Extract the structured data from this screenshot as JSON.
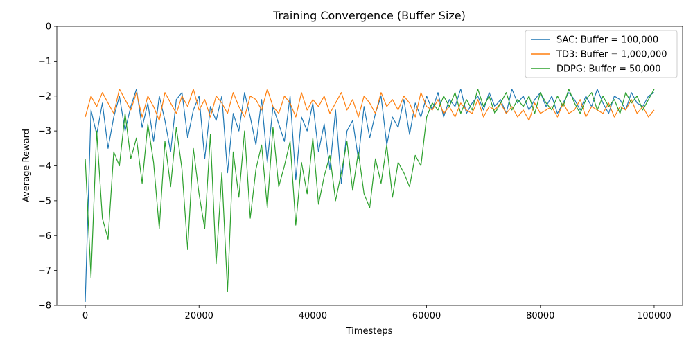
{
  "chart_data": {
    "type": "line",
    "title": "Training Convergence (Buffer Size)",
    "xlabel": "Timesteps",
    "ylabel": "Average Reward",
    "xlim": [
      -5000,
      105000
    ],
    "ylim": [
      -8,
      0
    ],
    "xticks": [
      0,
      20000,
      40000,
      60000,
      80000,
      100000
    ],
    "xtick_labels": [
      "0",
      "20000",
      "40000",
      "60000",
      "80000",
      "100000"
    ],
    "yticks": [
      0,
      -1,
      -2,
      -3,
      -4,
      -5,
      -6,
      -7,
      -8
    ],
    "ytick_labels": [
      "0",
      "−1",
      "−2",
      "−3",
      "−4",
      "−5",
      "−6",
      "−7",
      "−8"
    ],
    "grid": false,
    "legend_position": "top-right",
    "series": [
      {
        "name": "SAC: Buffer = 100,000",
        "color": "#1f77b4",
        "x": [
          0,
          1000,
          2000,
          3000,
          4000,
          5000,
          6000,
          7000,
          8000,
          9000,
          10000,
          11000,
          12000,
          13000,
          14000,
          15000,
          16000,
          17000,
          18000,
          19000,
          20000,
          21000,
          22000,
          23000,
          24000,
          25000,
          26000,
          27000,
          28000,
          29000,
          30000,
          31000,
          32000,
          33000,
          34000,
          35000,
          36000,
          37000,
          38000,
          39000,
          40000,
          41000,
          42000,
          43000,
          44000,
          45000,
          46000,
          47000,
          48000,
          49000,
          50000,
          51000,
          52000,
          53000,
          54000,
          55000,
          56000,
          57000,
          58000,
          59000,
          60000,
          61000,
          62000,
          63000,
          64000,
          65000,
          66000,
          67000,
          68000,
          69000,
          70000,
          71000,
          72000,
          73000,
          74000,
          75000,
          76000,
          77000,
          78000,
          79000,
          80000,
          81000,
          82000,
          83000,
          84000,
          85000,
          86000,
          87000,
          88000,
          89000,
          90000,
          91000,
          92000,
          93000,
          94000,
          95000,
          96000,
          97000,
          98000,
          99000,
          100000
        ],
        "values": [
          -7.9,
          -2.4,
          -3.1,
          -2.2,
          -3.5,
          -2.6,
          -2.0,
          -3.0,
          -2.3,
          -1.8,
          -2.9,
          -2.2,
          -3.3,
          -2.0,
          -2.7,
          -3.6,
          -2.1,
          -1.9,
          -3.2,
          -2.4,
          -2.0,
          -3.8,
          -2.3,
          -2.7,
          -2.0,
          -4.2,
          -2.5,
          -3.0,
          -1.9,
          -2.6,
          -3.4,
          -2.1,
          -3.9,
          -2.3,
          -2.8,
          -3.3,
          -2.0,
          -4.4,
          -2.6,
          -3.0,
          -2.2,
          -3.6,
          -2.8,
          -4.1,
          -2.4,
          -4.5,
          -3.0,
          -2.7,
          -3.8,
          -2.3,
          -3.2,
          -2.5,
          -2.0,
          -3.4,
          -2.6,
          -2.9,
          -2.1,
          -3.1,
          -2.2,
          -2.6,
          -2.0,
          -2.4,
          -1.9,
          -2.6,
          -2.1,
          -2.3,
          -1.8,
          -2.5,
          -2.2,
          -2.0,
          -2.4,
          -1.9,
          -2.3,
          -2.1,
          -2.5,
          -1.8,
          -2.2,
          -2.0,
          -2.4,
          -2.1,
          -1.9,
          -2.3,
          -2.0,
          -2.5,
          -2.2,
          -1.9,
          -2.1,
          -2.4,
          -2.0,
          -2.3,
          -1.8,
          -2.2,
          -2.5,
          -2.0,
          -2.1,
          -2.4,
          -1.9,
          -2.2,
          -2.3,
          -2.0,
          -1.9
        ]
      },
      {
        "name": "TD3: Buffer = 1,000,000",
        "color": "#ff7f0e",
        "x": [
          0,
          1000,
          2000,
          3000,
          4000,
          5000,
          6000,
          7000,
          8000,
          9000,
          10000,
          11000,
          12000,
          13000,
          14000,
          15000,
          16000,
          17000,
          18000,
          19000,
          20000,
          21000,
          22000,
          23000,
          24000,
          25000,
          26000,
          27000,
          28000,
          29000,
          30000,
          31000,
          32000,
          33000,
          34000,
          35000,
          36000,
          37000,
          38000,
          39000,
          40000,
          41000,
          42000,
          43000,
          44000,
          45000,
          46000,
          47000,
          48000,
          49000,
          50000,
          51000,
          52000,
          53000,
          54000,
          55000,
          56000,
          57000,
          58000,
          59000,
          60000,
          61000,
          62000,
          63000,
          64000,
          65000,
          66000,
          67000,
          68000,
          69000,
          70000,
          71000,
          72000,
          73000,
          74000,
          75000,
          76000,
          77000,
          78000,
          79000,
          80000,
          81000,
          82000,
          83000,
          84000,
          85000,
          86000,
          87000,
          88000,
          89000,
          90000,
          91000,
          92000,
          93000,
          94000,
          95000,
          96000,
          97000,
          98000,
          99000,
          100000
        ],
        "values": [
          -2.6,
          -2.0,
          -2.3,
          -1.9,
          -2.2,
          -2.5,
          -1.8,
          -2.1,
          -2.4,
          -1.9,
          -2.6,
          -2.0,
          -2.3,
          -2.7,
          -1.9,
          -2.2,
          -2.5,
          -2.0,
          -2.3,
          -1.8,
          -2.4,
          -2.1,
          -2.6,
          -2.0,
          -2.2,
          -2.5,
          -1.9,
          -2.3,
          -2.6,
          -2.0,
          -2.1,
          -2.4,
          -1.8,
          -2.3,
          -2.5,
          -2.0,
          -2.2,
          -2.6,
          -1.9,
          -2.4,
          -2.1,
          -2.3,
          -2.0,
          -2.5,
          -2.2,
          -1.9,
          -2.4,
          -2.1,
          -2.6,
          -2.0,
          -2.2,
          -2.5,
          -1.9,
          -2.3,
          -2.1,
          -2.4,
          -2.0,
          -2.2,
          -2.6,
          -1.9,
          -2.3,
          -2.4,
          -2.1,
          -2.5,
          -2.3,
          -2.6,
          -2.2,
          -2.4,
          -2.5,
          -2.1,
          -2.6,
          -2.3,
          -2.4,
          -2.2,
          -2.5,
          -2.3,
          -2.6,
          -2.4,
          -2.7,
          -2.2,
          -2.5,
          -2.4,
          -2.3,
          -2.6,
          -2.2,
          -2.5,
          -2.4,
          -2.1,
          -2.6,
          -2.3,
          -2.4,
          -2.5,
          -2.2,
          -2.6,
          -2.3,
          -2.4,
          -2.1,
          -2.5,
          -2.3,
          -2.6,
          -2.4
        ]
      },
      {
        "name": "DDPG: Buffer = 50,000",
        "color": "#2ca02c",
        "x": [
          0,
          1000,
          2000,
          3000,
          4000,
          5000,
          6000,
          7000,
          8000,
          9000,
          10000,
          11000,
          12000,
          13000,
          14000,
          15000,
          16000,
          17000,
          18000,
          19000,
          20000,
          21000,
          22000,
          23000,
          24000,
          25000,
          26000,
          27000,
          28000,
          29000,
          30000,
          31000,
          32000,
          33000,
          34000,
          35000,
          36000,
          37000,
          38000,
          39000,
          40000,
          41000,
          42000,
          43000,
          44000,
          45000,
          46000,
          47000,
          48000,
          49000,
          50000,
          51000,
          52000,
          53000,
          54000,
          55000,
          56000,
          57000,
          58000,
          59000,
          60000,
          61000,
          62000,
          63000,
          64000,
          65000,
          66000,
          67000,
          68000,
          69000,
          70000,
          71000,
          72000,
          73000,
          74000,
          75000,
          76000,
          77000,
          78000,
          79000,
          80000,
          81000,
          82000,
          83000,
          84000,
          85000,
          86000,
          87000,
          88000,
          89000,
          90000,
          91000,
          92000,
          93000,
          94000,
          95000,
          96000,
          97000,
          98000,
          99000,
          100000
        ],
        "values": [
          -3.8,
          -7.2,
          -3.0,
          -5.5,
          -6.1,
          -3.6,
          -4.0,
          -2.5,
          -3.8,
          -3.2,
          -4.5,
          -2.8,
          -3.9,
          -5.8,
          -3.3,
          -4.6,
          -2.9,
          -4.1,
          -6.4,
          -3.5,
          -4.8,
          -5.8,
          -3.1,
          -6.8,
          -4.2,
          -7.6,
          -3.6,
          -4.9,
          -3.0,
          -5.5,
          -4.1,
          -3.4,
          -5.2,
          -2.9,
          -4.6,
          -4.0,
          -3.3,
          -5.7,
          -3.9,
          -4.8,
          -3.2,
          -5.1,
          -4.3,
          -3.7,
          -5.0,
          -4.2,
          -3.3,
          -4.7,
          -3.6,
          -4.8,
          -5.2,
          -3.8,
          -4.5,
          -3.4,
          -4.9,
          -3.9,
          -4.2,
          -4.6,
          -3.7,
          -4.0,
          -2.6,
          -2.2,
          -2.4,
          -2.0,
          -2.3,
          -1.9,
          -2.5,
          -2.1,
          -2.4,
          -1.8,
          -2.3,
          -2.0,
          -2.5,
          -2.2,
          -1.9,
          -2.4,
          -2.1,
          -2.3,
          -2.0,
          -2.5,
          -1.9,
          -2.2,
          -2.4,
          -2.0,
          -2.3,
          -1.8,
          -2.2,
          -2.5,
          -2.1,
          -1.9,
          -2.4,
          -2.0,
          -2.3,
          -2.1,
          -2.5,
          -1.9,
          -2.2,
          -2.0,
          -2.4,
          -2.1,
          -1.8
        ]
      }
    ]
  }
}
